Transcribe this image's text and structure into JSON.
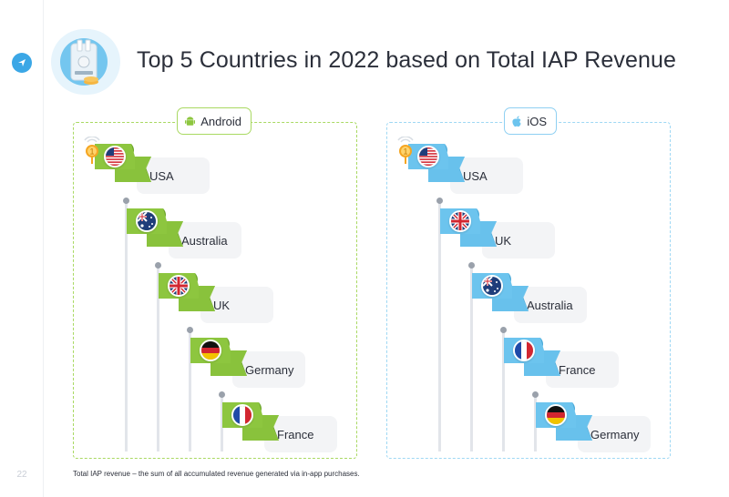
{
  "page": {
    "number": "22",
    "title": "Top 5 Countries in 2022 based on Total IAP Revenue"
  },
  "footnote": "Total IAP revenue – the sum of all accumulated revenue generated via in-app purchases.",
  "colors": {
    "android": "#8dc63f",
    "ios": "#6cc4ee",
    "medal": "#f5a623"
  },
  "android": {
    "label": "Android",
    "rank_badge": "1",
    "countries": [
      "USA",
      "Australia",
      "UK",
      "Germany",
      "France"
    ]
  },
  "ios": {
    "label": "iOS",
    "rank_badge": "1",
    "countries": [
      "USA",
      "UK",
      "Australia",
      "France",
      "Germany"
    ]
  }
}
